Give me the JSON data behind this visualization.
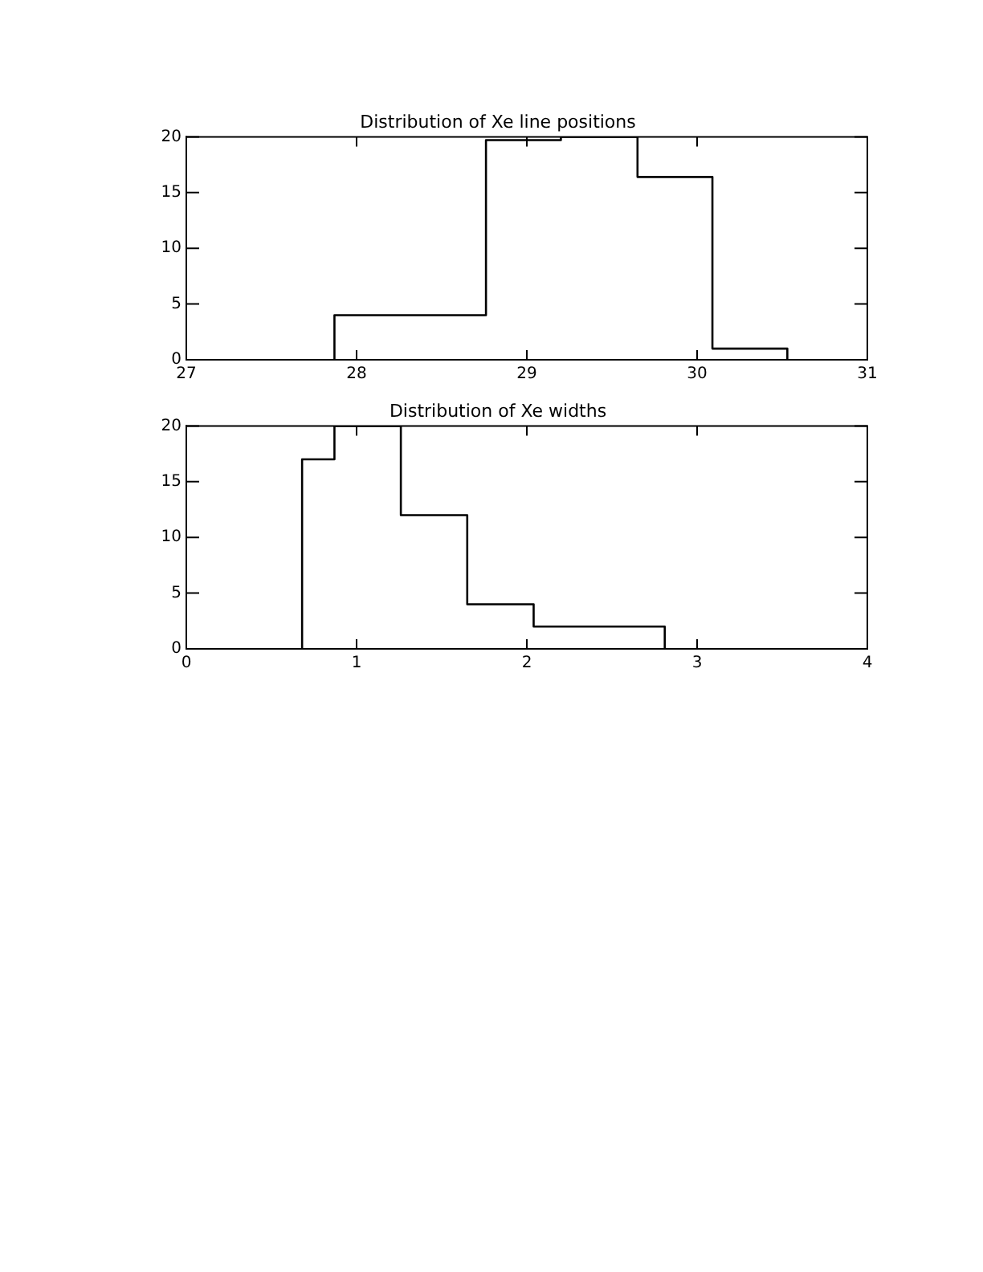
{
  "chart_data": [
    {
      "type": "histogram",
      "title": "Distribution of Xe line positions",
      "color": "#000000",
      "bins": [
        27.87,
        28.31,
        28.76,
        29.2,
        29.65,
        30.09,
        30.53
      ],
      "values": [
        4,
        4,
        19.7,
        20,
        16.4,
        1
      ],
      "xlim": [
        27,
        31
      ],
      "xticks": [
        27,
        28,
        29,
        30,
        31
      ],
      "ylim": [
        0,
        20
      ],
      "yticks": [
        0,
        5,
        10,
        15,
        20
      ],
      "grid": false,
      "legend": false
    },
    {
      "type": "histogram",
      "title": "Distribution of Xe widths",
      "color": "#000000",
      "bins": [
        0.68,
        0.87,
        1.26,
        1.65,
        2.04,
        2.42,
        2.81
      ],
      "values": [
        17,
        20,
        12,
        4,
        2,
        2
      ],
      "xlim": [
        0,
        4
      ],
      "xticks": [
        0,
        1,
        2,
        3,
        4
      ],
      "ylim": [
        0,
        20
      ],
      "yticks": [
        0,
        5,
        10,
        15,
        20
      ],
      "grid": false,
      "legend": false
    }
  ]
}
